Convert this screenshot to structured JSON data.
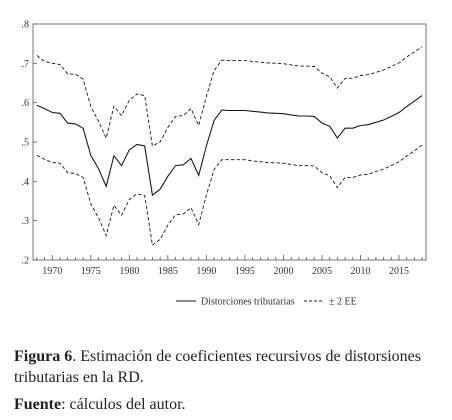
{
  "chart_data": {
    "type": "line",
    "xlim": [
      1967.5,
      2018.5
    ],
    "ylim": [
      0.2,
      0.8
    ],
    "x_ticks": [
      "1970",
      "1975",
      "1980",
      "1985",
      "1990",
      "1995",
      "2000",
      "2005",
      "2010",
      "2015"
    ],
    "y_ticks": [
      ".2",
      ".3",
      ".4",
      ".5",
      ".6",
      ".7",
      ".8"
    ],
    "grid": false,
    "legend_position": "bottom",
    "x": [
      1968,
      1969,
      1970,
      1971,
      1972,
      1973,
      1974,
      1975,
      1976,
      1977,
      1978,
      1979,
      1980,
      1981,
      1982,
      1983,
      1984,
      1985,
      1986,
      1987,
      1988,
      1989,
      1990,
      1991,
      1992,
      1993,
      1994,
      1995,
      1996,
      1997,
      1998,
      1999,
      2000,
      2001,
      2002,
      2003,
      2004,
      2005,
      2006,
      2007,
      2008,
      2009,
      2010,
      2011,
      2012,
      2013,
      2014,
      2015,
      2016,
      2017,
      2018
    ],
    "series": [
      {
        "name": "Distorciones tributarias",
        "style": "solid",
        "values": [
          0.593,
          0.585,
          0.575,
          0.573,
          0.548,
          0.546,
          0.535,
          0.466,
          0.432,
          0.387,
          0.465,
          0.44,
          0.48,
          0.494,
          0.49,
          0.365,
          0.38,
          0.413,
          0.44,
          0.442,
          0.458,
          0.415,
          0.49,
          0.555,
          0.581,
          0.58,
          0.58,
          0.58,
          0.578,
          0.576,
          0.574,
          0.573,
          0.572,
          0.569,
          0.566,
          0.566,
          0.565,
          0.548,
          0.54,
          0.51,
          0.535,
          0.535,
          0.542,
          0.544,
          0.55,
          0.556,
          0.565,
          0.575,
          0.59,
          0.604,
          0.618
        ]
      },
      {
        "name": "± 2 EE",
        "style": "dashed",
        "values": [
          0.72,
          0.705,
          0.7,
          0.697,
          0.673,
          0.672,
          0.66,
          0.59,
          0.553,
          0.51,
          0.591,
          0.567,
          0.606,
          0.622,
          0.618,
          0.49,
          0.5,
          0.537,
          0.565,
          0.567,
          0.585,
          0.542,
          0.616,
          0.682,
          0.708,
          0.707,
          0.707,
          0.707,
          0.705,
          0.703,
          0.701,
          0.7,
          0.699,
          0.696,
          0.693,
          0.693,
          0.692,
          0.675,
          0.666,
          0.637,
          0.662,
          0.662,
          0.669,
          0.671,
          0.677,
          0.683,
          0.692,
          0.701,
          0.716,
          0.729,
          0.742
        ]
      },
      {
        "name": "± 2 EE",
        "style": "dashed",
        "values": [
          0.466,
          0.456,
          0.448,
          0.446,
          0.422,
          0.42,
          0.41,
          0.343,
          0.307,
          0.262,
          0.339,
          0.314,
          0.354,
          0.368,
          0.364,
          0.238,
          0.252,
          0.289,
          0.315,
          0.317,
          0.333,
          0.29,
          0.365,
          0.43,
          0.455,
          0.455,
          0.455,
          0.455,
          0.452,
          0.45,
          0.448,
          0.447,
          0.446,
          0.443,
          0.44,
          0.44,
          0.439,
          0.422,
          0.414,
          0.384,
          0.41,
          0.41,
          0.416,
          0.418,
          0.425,
          0.431,
          0.44,
          0.45,
          0.464,
          0.478,
          0.492
        ]
      }
    ],
    "legend": [
      {
        "label": "Distorciones tributarias",
        "style": "solid"
      },
      {
        "label": "± 2 EE",
        "style": "dashed"
      }
    ]
  },
  "caption": {
    "figure_label": "Figura 6",
    "figure_text": ". Estimación de coeficientes recursivos de distorsiones tributarias en la RD.",
    "source_label": "Fuente",
    "source_text": ": cálculos del autor."
  }
}
